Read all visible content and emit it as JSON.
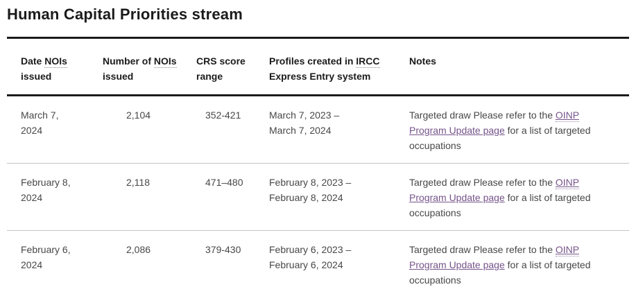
{
  "page": {
    "title": "Human Capital Priorities stream"
  },
  "colors": {
    "heading_text": "#1b1b1b",
    "body_text": "#474747",
    "table_border_dark": "#1b1b1b",
    "row_divider": "#c3c3c3",
    "link_purple": "#75538a"
  },
  "table": {
    "columns": [
      {
        "pre": "Date ",
        "abbr": "NOIs",
        "post": " issued"
      },
      {
        "pre": "Number of ",
        "abbr": "NOIs",
        "post": " issued"
      },
      {
        "pre": "CRS score range",
        "abbr": "",
        "post": ""
      },
      {
        "pre": "Profiles created in ",
        "abbr": "IRCC",
        "post": " Express Entry system"
      },
      {
        "pre": "Notes",
        "abbr": "",
        "post": ""
      }
    ],
    "rows": [
      {
        "date_line1": "March 7,",
        "date_line2": "2024",
        "nois": "2,104",
        "crs_range": "352-421",
        "profiles_line1": "March 7, 2023 –",
        "profiles_line2": "March 7, 2024",
        "note": {
          "pre": "Targeted draw Please refer to the ",
          "link_abbr": "OINP",
          "link_text": " Program Update page",
          "post": " for a list of targeted occupations"
        }
      },
      {
        "date_line1": "February 8,",
        "date_line2": "2024",
        "nois": "2,118",
        "crs_range": "471–480",
        "profiles_line1": "February 8, 2023 –",
        "profiles_line2": "February 8, 2024",
        "note": {
          "pre": "Targeted draw Please refer to the ",
          "link_abbr": "OINP",
          "link_text": " Program Update page",
          "post": " for a list of targeted occupations"
        }
      },
      {
        "date_line1": "February 6,",
        "date_line2": "2024",
        "nois": "2,086",
        "crs_range": "379-430",
        "profiles_line1": "February 6, 2023 –",
        "profiles_line2": "February 6, 2024",
        "note": {
          "pre": "Targeted draw Please refer to the ",
          "link_abbr": "OINP",
          "link_text": " Program Update page",
          "post": " for a list of targeted occupations"
        }
      }
    ]
  }
}
